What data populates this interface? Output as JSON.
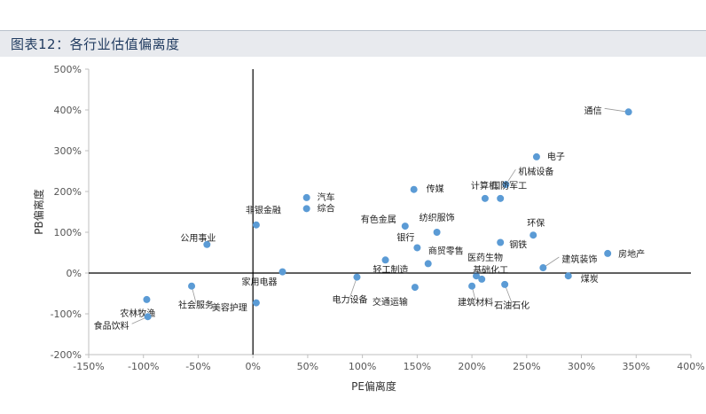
{
  "title": "图表12：各行业估值偏离度",
  "chart_data": {
    "type": "scatter",
    "xlabel": "PE偏离度",
    "ylabel": "PB偏离度",
    "xlim": [
      -150,
      400
    ],
    "ylim": [
      -200,
      500
    ],
    "xticks": [
      "-150%",
      "-100%",
      "-50%",
      "0%",
      "50%",
      "100%",
      "150%",
      "200%",
      "250%",
      "300%",
      "350%",
      "400%"
    ],
    "yticks": [
      "500%",
      "400%",
      "300%",
      "200%",
      "100%",
      "0%",
      "-100%",
      "-200%"
    ],
    "grid": false,
    "point_color": "#5b9bd5",
    "points": [
      {
        "name": "通信",
        "x": 343,
        "y": 395
      },
      {
        "name": "电子",
        "x": 259,
        "y": 285
      },
      {
        "name": "机械设备",
        "x": 231,
        "y": 217
      },
      {
        "name": "计算机",
        "x": 212,
        "y": 183
      },
      {
        "name": "国防军工",
        "x": 226,
        "y": 183
      },
      {
        "name": "传媒",
        "x": 147,
        "y": 205
      },
      {
        "name": "汽车",
        "x": 49,
        "y": 185
      },
      {
        "name": "综合",
        "x": 49,
        "y": 158
      },
      {
        "name": "非银金融",
        "x": 3,
        "y": 118
      },
      {
        "name": "有色金属",
        "x": 139,
        "y": 115
      },
      {
        "name": "纺织服饰",
        "x": 168,
        "y": 100
      },
      {
        "name": "银行",
        "x": 150,
        "y": 62
      },
      {
        "name": "环保",
        "x": 256,
        "y": 93
      },
      {
        "name": "钢铁",
        "x": 226,
        "y": 75
      },
      {
        "name": "公用事业",
        "x": -42,
        "y": 70
      },
      {
        "name": "房地产",
        "x": 324,
        "y": 48
      },
      {
        "name": "建筑装饰",
        "x": 265,
        "y": 13
      },
      {
        "name": "商贸零售",
        "x": 160,
        "y": 23
      },
      {
        "name": "轻工制造",
        "x": 121,
        "y": 32
      },
      {
        "name": "家用电器",
        "x": 27,
        "y": 3
      },
      {
        "name": "煤炭",
        "x": 288,
        "y": -7
      },
      {
        "name": "医药生物",
        "x": 204,
        "y": -7
      },
      {
        "name": "基础化工",
        "x": 209,
        "y": -15
      },
      {
        "name": "电力设备",
        "x": 95,
        "y": -10
      },
      {
        "name": "交通运输",
        "x": 148,
        "y": -35
      },
      {
        "name": "建筑材料",
        "x": 200,
        "y": -32
      },
      {
        "name": "石油石化",
        "x": 230,
        "y": -28
      },
      {
        "name": "社会服务",
        "x": -56,
        "y": -32
      },
      {
        "name": "美容护理",
        "x": 3,
        "y": -73
      },
      {
        "name": "农林牧渔",
        "x": -97,
        "y": -65
      },
      {
        "name": "食品饮料",
        "x": -96,
        "y": -107
      }
    ]
  }
}
